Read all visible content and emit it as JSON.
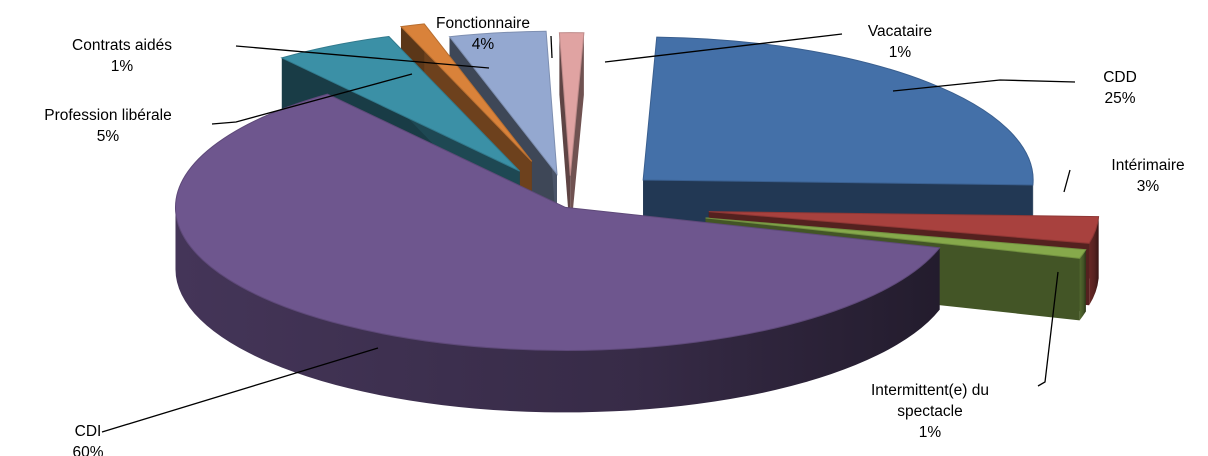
{
  "chart_data": {
    "type": "pie",
    "style": "3d-exploded",
    "title": "",
    "legend": "none",
    "slices": [
      {
        "name": "CDD",
        "pct_label": "25%",
        "value": 25,
        "color": "#4470A8"
      },
      {
        "name": "Intérimaire",
        "pct_label": "3%",
        "value": 3,
        "color": "#A8413E"
      },
      {
        "name": "Intermittent(e) du spectacle",
        "pct_label": "1%",
        "value": 1,
        "color": "#86A94B"
      },
      {
        "name": "CDI",
        "pct_label": "60%",
        "value": 60,
        "color": "#6E568E"
      },
      {
        "name": "Profession libérale",
        "pct_label": "5%",
        "value": 5,
        "color": "#3B90A6"
      },
      {
        "name": "Contrats aidés",
        "pct_label": "1%",
        "value": 1,
        "color": "#D9823A"
      },
      {
        "name": "Fonctionnaire",
        "pct_label": "4%",
        "value": 4,
        "color": "#94A8D0"
      },
      {
        "name": "Vacataire",
        "pct_label": "1%",
        "value": 1,
        "color": "#E0A3A2"
      }
    ]
  }
}
